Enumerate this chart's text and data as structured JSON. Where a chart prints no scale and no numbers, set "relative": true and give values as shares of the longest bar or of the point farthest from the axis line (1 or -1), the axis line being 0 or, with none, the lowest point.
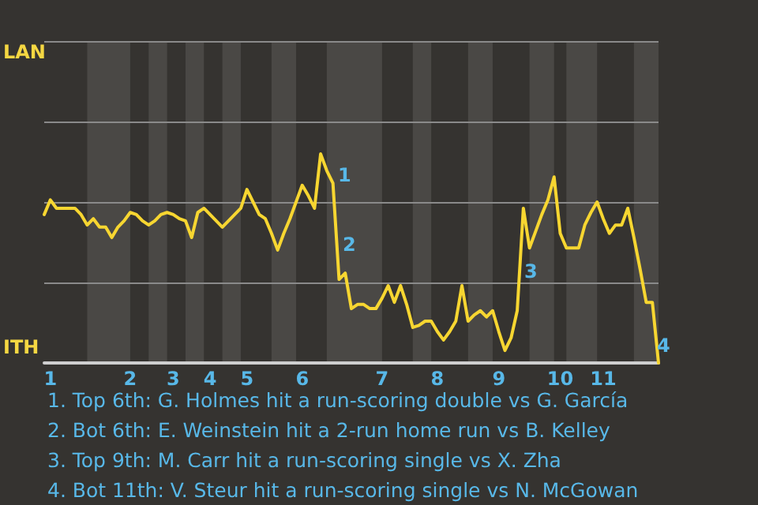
{
  "chart_data": {
    "type": "line",
    "relative": true,
    "categories": [
      null,
      "1",
      null,
      null,
      null,
      null,
      null,
      null,
      null,
      null,
      null,
      null,
      null,
      null,
      "2",
      null,
      null,
      null,
      null,
      null,
      null,
      "3",
      null,
      null,
      null,
      null,
      null,
      "4",
      null,
      null,
      null,
      null,
      null,
      "5",
      null,
      null,
      null,
      null,
      null,
      null,
      null,
      null,
      "6",
      null,
      null,
      null,
      null,
      null,
      null,
      null,
      null,
      null,
      null,
      null,
      null,
      "7",
      null,
      null,
      null,
      null,
      null,
      null,
      null,
      null,
      "8",
      null,
      null,
      null,
      null,
      null,
      null,
      null,
      null,
      null,
      "9",
      null,
      null,
      null,
      null,
      null,
      null,
      null,
      null,
      null,
      "10",
      null,
      null,
      null,
      null,
      null,
      null,
      "11",
      null,
      null,
      null,
      null,
      null,
      null,
      null,
      null,
      null
    ],
    "series": [
      {
        "color": "#f7d631",
        "values": [
          0.71,
          0.78,
          0.74,
          0.74,
          0.74,
          0.74,
          0.71,
          0.66,
          0.69,
          0.65,
          0.65,
          0.6,
          0.65,
          0.68,
          0.72,
          0.71,
          0.68,
          0.66,
          0.68,
          0.71,
          0.72,
          0.71,
          0.69,
          0.68,
          0.6,
          0.72,
          0.74,
          0.71,
          0.68,
          0.65,
          0.68,
          0.71,
          0.74,
          0.83,
          0.77,
          0.71,
          0.69,
          0.62,
          0.54,
          0.62,
          0.69,
          0.77,
          0.85,
          0.8,
          0.74,
          1,
          0.92,
          0.86,
          0.4,
          0.43,
          0.26,
          0.28,
          0.28,
          0.26,
          0.26,
          0.31,
          0.37,
          0.29,
          0.37,
          0.28,
          0.17,
          0.18,
          0.2,
          0.2,
          0.15,
          0.11,
          0.15,
          0.2,
          0.37,
          0.2,
          0.23,
          0.25,
          0.22,
          0.25,
          0.15,
          0.06,
          0.12,
          0.25,
          0.74,
          0.55,
          0.63,
          0.71,
          0.78,
          0.89,
          0.62,
          0.55,
          0.55,
          0.55,
          0.66,
          0.72,
          0.77,
          0.69,
          0.62,
          0.66,
          0.66,
          0.74,
          0.6,
          0.45,
          0.29,
          0.29,
          0
        ]
      }
    ],
    "ref_lines": [
      {
        "axis": "y",
        "value": 0.38,
        "color": "#8a8a8a",
        "line_style": "solid"
      },
      {
        "axis": "y",
        "value": 0.77,
        "color": "#8a8a8a",
        "line_style": "solid"
      }
    ],
    "marker": "none",
    "line_style": "solid",
    "annotations": [
      "LAN",
      "ITH",
      "1",
      "2",
      "3",
      "4",
      "1. Top 6th: G. Holmes hit a run-scoring double vs G. García",
      "2. Bot 6th: E. Weinstein hit a 2-run home run vs B. Kelley",
      "3. Top 9th: M. Carr hit a run-scoring single vs X. Zha",
      "4. Bot 11th: V. Steur hit a run-scoring single vs N. McGowan"
    ]
  }
}
